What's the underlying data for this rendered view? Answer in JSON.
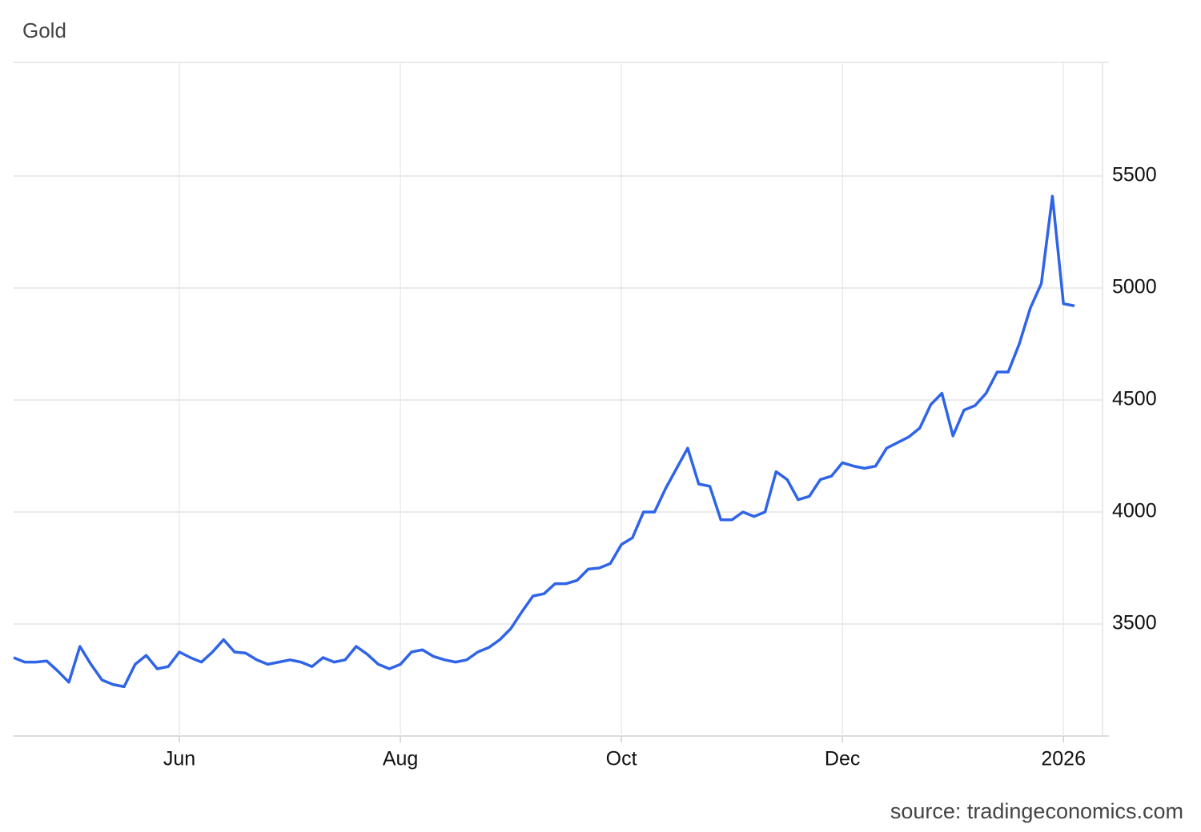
{
  "chart_data": {
    "type": "line",
    "title": "Gold",
    "source": "source: tradingeconomics.com",
    "categories": [
      null,
      null,
      null,
      null,
      null,
      null,
      null,
      null,
      null,
      null,
      null,
      null,
      null,
      null,
      null,
      "Jun",
      null,
      null,
      null,
      null,
      null,
      null,
      null,
      null,
      null,
      null,
      null,
      null,
      null,
      null,
      null,
      null,
      null,
      null,
      null,
      "Aug",
      null,
      null,
      null,
      null,
      null,
      null,
      null,
      null,
      null,
      null,
      null,
      null,
      null,
      null,
      null,
      null,
      null,
      null,
      null,
      "Oct",
      null,
      null,
      null,
      null,
      null,
      null,
      null,
      null,
      null,
      null,
      null,
      null,
      null,
      null,
      null,
      null,
      null,
      null,
      null,
      "Dec",
      null,
      null,
      null,
      null,
      null,
      null,
      null,
      null,
      null,
      null,
      null,
      null,
      null,
      null,
      null,
      null,
      null,
      null,
      null,
      "2026",
      null
    ],
    "series": [
      {
        "name": "Gold",
        "color": "#2f64e8",
        "values": [
          3350,
          3330,
          3330,
          3335,
          3290,
          3240,
          3400,
          3320,
          3250,
          3230,
          3220,
          3320,
          3360,
          3300,
          3310,
          3375,
          3350,
          3330,
          3375,
          3430,
          3375,
          3370,
          3340,
          3320,
          3330,
          3340,
          3330,
          3310,
          3350,
          3330,
          3340,
          3400,
          3365,
          3320,
          3300,
          3320,
          3375,
          3385,
          3355,
          3340,
          3330,
          3340,
          3375,
          3395,
          3430,
          3480,
          3555,
          3625,
          3635,
          3680,
          3680,
          3695,
          3745,
          3750,
          3770,
          3855,
          3885,
          4000,
          4000,
          4105,
          4195,
          4285,
          4125,
          4115,
          3965,
          3965,
          4000,
          3980,
          4000,
          4180,
          4145,
          4055,
          4070,
          4145,
          4160,
          4220,
          4205,
          4195,
          4205,
          4285,
          4310,
          4335,
          4375,
          4480,
          4530,
          4340,
          4455,
          4475,
          4530,
          4625,
          4625,
          4750,
          4910,
          5020,
          5410,
          4930,
          4920
        ]
      }
    ],
    "ylim": [
      3000,
      6000
    ],
    "yticks": [
      3500,
      4000,
      4500,
      5000,
      5500
    ],
    "grid": true,
    "y_axis_side": "right"
  }
}
